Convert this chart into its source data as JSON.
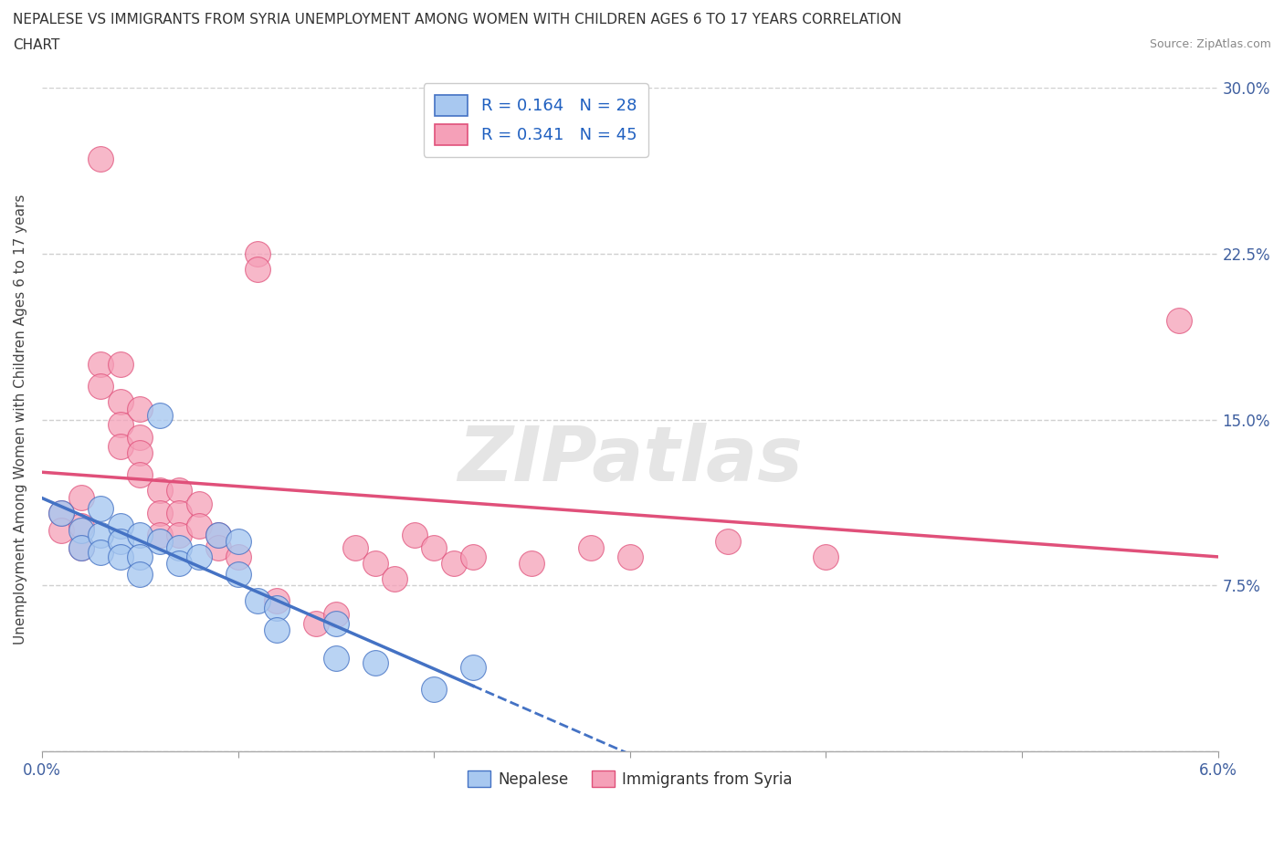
{
  "title_line1": "NEPALESE VS IMMIGRANTS FROM SYRIA UNEMPLOYMENT AMONG WOMEN WITH CHILDREN AGES 6 TO 17 YEARS CORRELATION",
  "title_line2": "CHART",
  "source": "Source: ZipAtlas.com",
  "ylabel": "Unemployment Among Women with Children Ages 6 to 17 years",
  "xlabel_blue": "Nepalese",
  "xlabel_pink": "Immigrants from Syria",
  "legend_blue_r": "R = 0.164",
  "legend_blue_n": "N = 28",
  "legend_pink_r": "R = 0.341",
  "legend_pink_n": "N = 45",
  "blue_color": "#a8c8f0",
  "pink_color": "#f5a0b8",
  "blue_line_color": "#4472c4",
  "pink_line_color": "#e0507a",
  "blue_scatter": [
    [
      0.001,
      0.108
    ],
    [
      0.002,
      0.1
    ],
    [
      0.002,
      0.092
    ],
    [
      0.003,
      0.11
    ],
    [
      0.003,
      0.098
    ],
    [
      0.003,
      0.09
    ],
    [
      0.004,
      0.102
    ],
    [
      0.004,
      0.095
    ],
    [
      0.004,
      0.088
    ],
    [
      0.005,
      0.098
    ],
    [
      0.005,
      0.088
    ],
    [
      0.005,
      0.08
    ],
    [
      0.006,
      0.152
    ],
    [
      0.006,
      0.095
    ],
    [
      0.007,
      0.092
    ],
    [
      0.007,
      0.085
    ],
    [
      0.008,
      0.088
    ],
    [
      0.009,
      0.098
    ],
    [
      0.01,
      0.095
    ],
    [
      0.01,
      0.08
    ],
    [
      0.011,
      0.068
    ],
    [
      0.012,
      0.065
    ],
    [
      0.012,
      0.055
    ],
    [
      0.015,
      0.058
    ],
    [
      0.015,
      0.042
    ],
    [
      0.017,
      0.04
    ],
    [
      0.02,
      0.028
    ],
    [
      0.022,
      0.038
    ]
  ],
  "pink_scatter": [
    [
      0.001,
      0.108
    ],
    [
      0.001,
      0.1
    ],
    [
      0.002,
      0.115
    ],
    [
      0.002,
      0.102
    ],
    [
      0.002,
      0.092
    ],
    [
      0.003,
      0.268
    ],
    [
      0.003,
      0.175
    ],
    [
      0.003,
      0.165
    ],
    [
      0.004,
      0.158
    ],
    [
      0.004,
      0.148
    ],
    [
      0.004,
      0.138
    ],
    [
      0.004,
      0.175
    ],
    [
      0.005,
      0.155
    ],
    [
      0.005,
      0.142
    ],
    [
      0.005,
      0.135
    ],
    [
      0.005,
      0.125
    ],
    [
      0.006,
      0.118
    ],
    [
      0.006,
      0.108
    ],
    [
      0.006,
      0.098
    ],
    [
      0.007,
      0.118
    ],
    [
      0.007,
      0.108
    ],
    [
      0.007,
      0.098
    ],
    [
      0.008,
      0.112
    ],
    [
      0.008,
      0.102
    ],
    [
      0.009,
      0.098
    ],
    [
      0.009,
      0.092
    ],
    [
      0.01,
      0.088
    ],
    [
      0.011,
      0.225
    ],
    [
      0.011,
      0.218
    ],
    [
      0.012,
      0.068
    ],
    [
      0.014,
      0.058
    ],
    [
      0.015,
      0.062
    ],
    [
      0.016,
      0.092
    ],
    [
      0.017,
      0.085
    ],
    [
      0.018,
      0.078
    ],
    [
      0.019,
      0.098
    ],
    [
      0.02,
      0.092
    ],
    [
      0.021,
      0.085
    ],
    [
      0.022,
      0.088
    ],
    [
      0.025,
      0.085
    ],
    [
      0.028,
      0.092
    ],
    [
      0.03,
      0.088
    ],
    [
      0.035,
      0.095
    ],
    [
      0.04,
      0.088
    ],
    [
      0.058,
      0.195
    ]
  ],
  "xmin": 0.0,
  "xmax": 0.06,
  "ymin": 0.0,
  "ymax": 0.3,
  "yticks": [
    0.0,
    0.075,
    0.15,
    0.225,
    0.3
  ],
  "ytick_labels": [
    "",
    "7.5%",
    "15.0%",
    "22.5%",
    "30.0%"
  ],
  "xtick_positions": [
    0.0,
    0.01,
    0.02,
    0.03,
    0.04,
    0.05,
    0.06
  ],
  "xtick_labels_show": [
    "0.0%",
    "",
    "",
    "",
    "",
    "",
    "6.0%"
  ],
  "watermark": "ZIPatlas",
  "bg_color": "#ffffff",
  "grid_color": "#d0d0d0",
  "legend_text_color": "#2060c0",
  "title_color": "#333333"
}
